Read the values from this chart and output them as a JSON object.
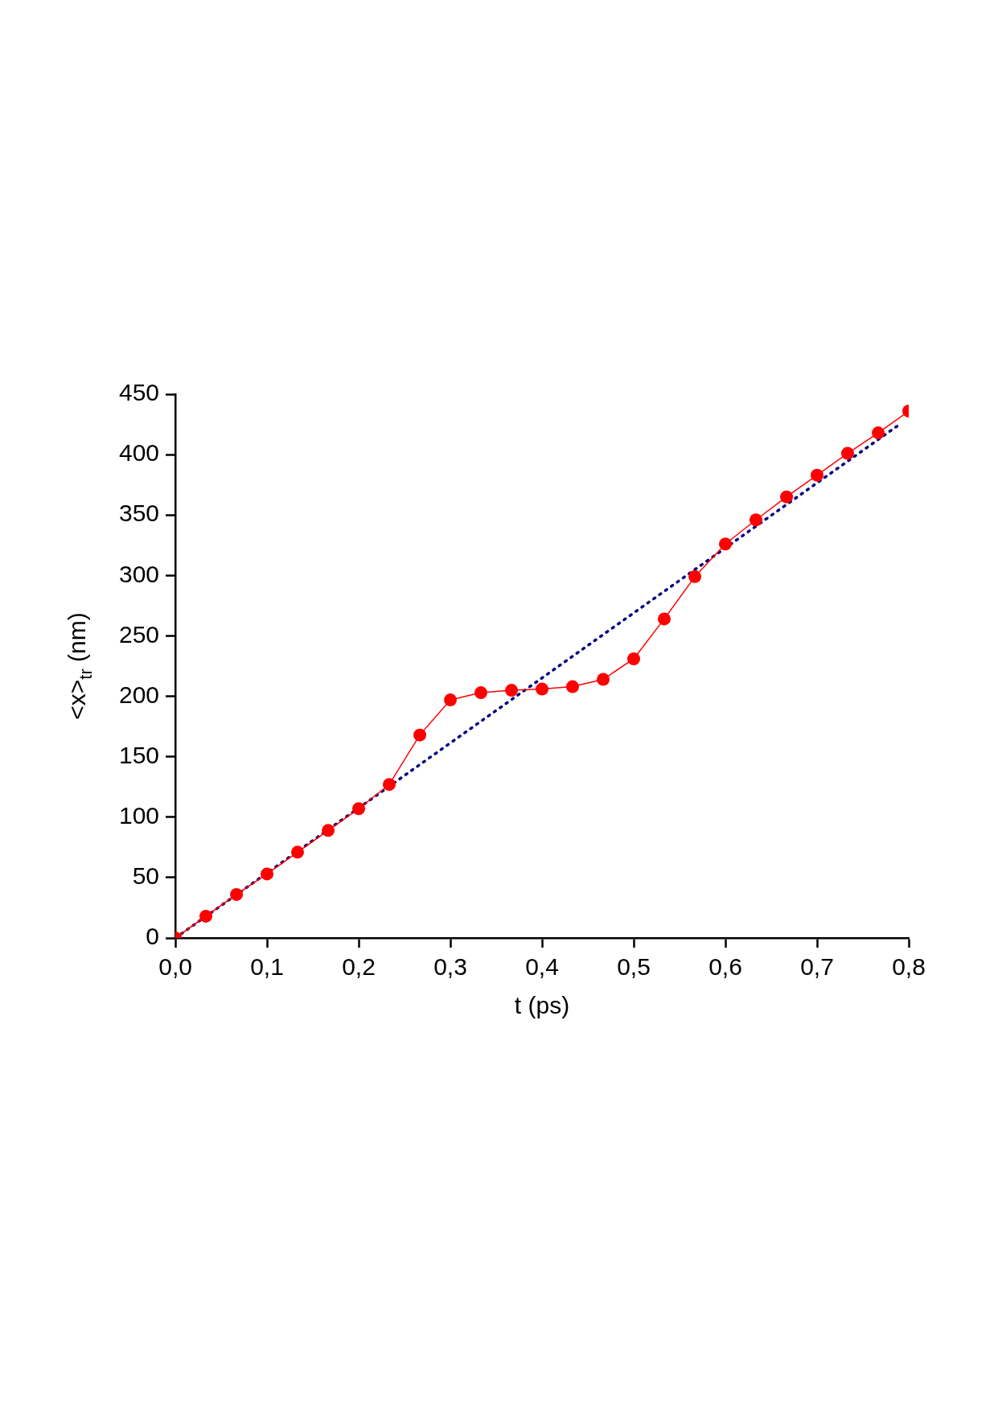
{
  "chart_data": {
    "type": "line",
    "xlabel": "t (ps)",
    "ylabel": "<x>$_{tr}$ (nm)",
    "xlim": [
      0,
      0.8
    ],
    "ylim": [
      0,
      450
    ],
    "xticks": [
      {
        "value": 0,
        "label": "0,0"
      },
      {
        "value": 0.1,
        "label": "0,1"
      },
      {
        "value": 0.2,
        "label": "0,2"
      },
      {
        "value": 0.3,
        "label": "0,3"
      },
      {
        "value": 0.4,
        "label": "0,4"
      },
      {
        "value": 0.5,
        "label": "0,5"
      },
      {
        "value": 0.6,
        "label": "0,6"
      },
      {
        "value": 0.7,
        "label": "0,7"
      },
      {
        "value": 0.8,
        "label": "0,8"
      }
    ],
    "yticks": [
      0,
      50,
      100,
      150,
      200,
      250,
      300,
      350,
      400,
      450
    ],
    "grid": false,
    "legend": false,
    "series": [
      {
        "color": "#ff0000",
        "marker": "circle",
        "line_style": "solid",
        "x": [
          0,
          0.0333,
          0.0667,
          0.1,
          0.1333,
          0.1667,
          0.2,
          0.2333,
          0.2667,
          0.3,
          0.3333,
          0.3667,
          0.4,
          0.4333,
          0.4667,
          0.5,
          0.5333,
          0.5667,
          0.6,
          0.6333,
          0.6667,
          0.7,
          0.7333,
          0.7667,
          0.8
        ],
        "values": [
          0,
          18,
          36,
          53,
          71,
          89,
          107,
          127,
          168,
          197,
          203,
          205,
          206,
          208,
          214,
          231,
          264,
          299,
          326,
          346,
          365,
          383,
          401,
          418,
          436
        ]
      },
      {
        "color": "#000080",
        "marker": "none",
        "line_style": "dotted",
        "x": [
          0,
          0.79
        ],
        "values": [
          0,
          425
        ]
      }
    ]
  }
}
